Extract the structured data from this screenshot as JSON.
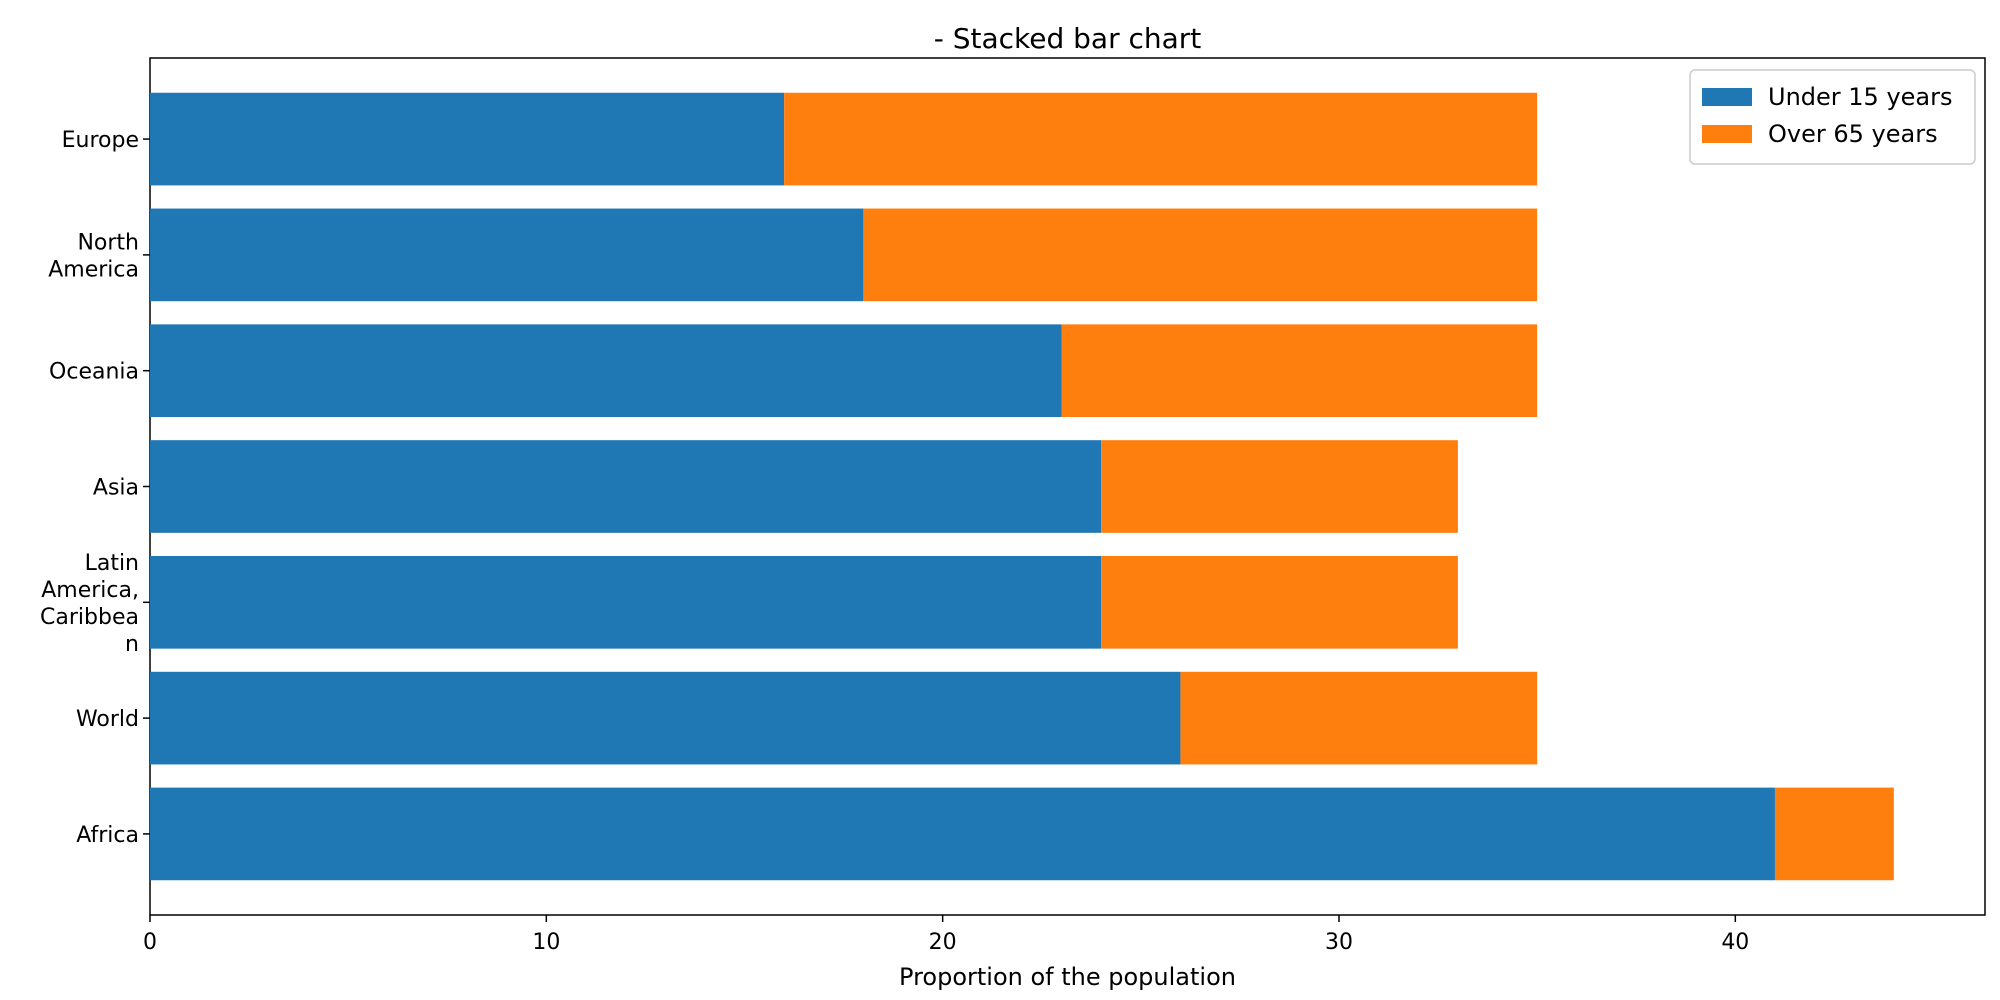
{
  "chart_data": {
    "type": "bar",
    "orientation": "horizontal",
    "stacked": true,
    "title": "- Stacked bar chart",
    "xlabel": "Proportion of the population",
    "ylabel": "",
    "xlim": [
      0,
      46.3
    ],
    "xticks": [
      0,
      10,
      20,
      30,
      40
    ],
    "grid": false,
    "legend_position": "top-right",
    "categories": [
      "Europe",
      "North\nAmerica",
      "Oceania",
      "Asia",
      "Latin\nAmerica,\nCaribbea\nn",
      "World",
      "Africa"
    ],
    "series": [
      {
        "name": "Under 15 years",
        "color": "#1f77b4",
        "values": [
          16,
          18,
          23,
          24,
          24,
          26,
          41
        ]
      },
      {
        "name": "Over 65 years",
        "color": "#ff7f0e",
        "values": [
          19,
          17,
          12,
          9,
          9,
          9,
          3
        ]
      }
    ]
  }
}
